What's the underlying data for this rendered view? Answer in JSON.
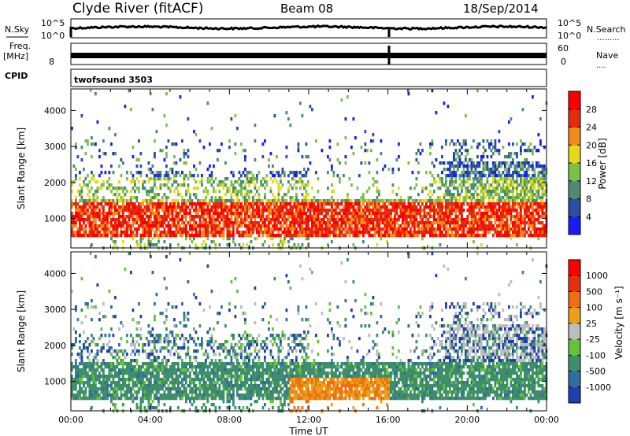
{
  "header": {
    "station": "Clyde River (fitACF)",
    "beam": "Beam 08",
    "date": "18/Sep/2014"
  },
  "strips": {
    "nsky_label": "N.Sky",
    "nsky_ticks": [
      "10^5",
      "10^0"
    ],
    "nsearch_label": "N.Search",
    "freq_label_1": "Freq.",
    "freq_label_2": "[MHz]",
    "freq_tick_8": "8",
    "nave_label": "Nave",
    "nave_ticks": [
      "60",
      "0"
    ],
    "cpid_label": "CPID",
    "cpid_value": "twofsound 3503"
  },
  "chart_data": [
    {
      "type": "heatmap",
      "name": "power",
      "ylabel": "Slant Range [km]",
      "xlabel": "",
      "x_range_hours": [
        0,
        24
      ],
      "ylim": [
        180,
        4600
      ],
      "yticks": [
        1000,
        2000,
        3000,
        4000
      ],
      "xtick_labels": [
        "00:00",
        "04:00",
        "08:00",
        "12:00",
        "16:00",
        "20:00",
        "00:00"
      ],
      "colorbar_label": "Power [dB]",
      "colorbar_ticks": [
        "4",
        "8",
        "12",
        "16",
        "20",
        "24",
        "28"
      ],
      "colorbar_colors": [
        "#1a1aff",
        "#2a4ea3",
        "#4b8b73",
        "#7cc04a",
        "#e6d91c",
        "#f08a1a",
        "#e62a10",
        "#ff0000"
      ]
    },
    {
      "type": "heatmap",
      "name": "velocity",
      "ylabel": "Slant Range [km]",
      "xlabel": "Time UT",
      "x_range_hours": [
        0,
        24
      ],
      "ylim": [
        180,
        4600
      ],
      "yticks": [
        1000,
        2000,
        3000,
        4000
      ],
      "xtick_labels": [
        "00:00",
        "04:00",
        "08:00",
        "12:00",
        "16:00",
        "20:00",
        "00:00"
      ],
      "colorbar_label": "Velocity [m s⁻¹]",
      "colorbar_ticks": [
        "1000",
        "500",
        "100",
        "25",
        "-25",
        "-100",
        "-500",
        "-1000"
      ],
      "colorbar_colors": [
        "#1f3fb0",
        "#2e6ea0",
        "#3e8e6a",
        "#66c23a",
        "#bdbdbd",
        "#e8a21a",
        "#f07010",
        "#e63010",
        "#ff0000"
      ]
    }
  ]
}
